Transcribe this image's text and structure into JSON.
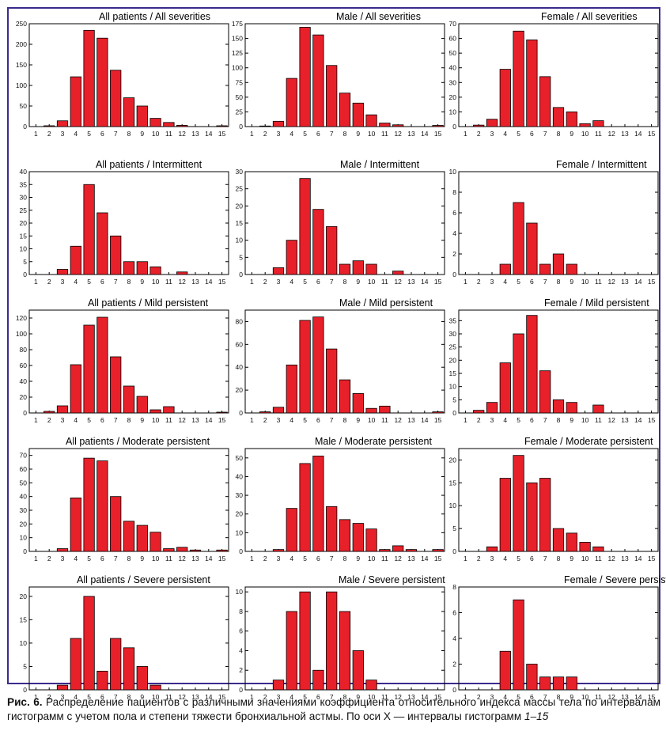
{
  "caption": {
    "fig_label": "Рис. 6.",
    "text": " Распределение пациентов с различными значениями коэффициента относительного индекса массы тела по интервалам гистограмм с учетом пола и степени тяжести бронхиальной астмы. По оси X — интервалы гистограмм ",
    "range": "1–15"
  },
  "colors": {
    "bar": "#e8202a",
    "bar_stroke": "#000000",
    "frame": "#3b2a8c"
  },
  "chart_data": [
    {
      "type": "bar",
      "title": "All patients / All severities",
      "categories": [
        "1",
        "2",
        "3",
        "4",
        "5",
        "6",
        "7",
        "8",
        "9",
        "10",
        "11",
        "12",
        "13",
        "14",
        "15"
      ],
      "values": [
        0,
        2,
        14,
        121,
        234,
        215,
        137,
        70,
        50,
        20,
        10,
        3,
        0,
        0,
        2
      ],
      "ylim": [
        0,
        250
      ],
      "yticks": [
        0,
        50,
        100,
        150,
        200,
        250
      ]
    },
    {
      "type": "bar",
      "title": "Male / All severities",
      "categories": [
        "1",
        "2",
        "3",
        "4",
        "5",
        "6",
        "7",
        "8",
        "9",
        "10",
        "11",
        "12",
        "13",
        "14",
        "15"
      ],
      "values": [
        0,
        1,
        9,
        82,
        169,
        156,
        104,
        57,
        40,
        20,
        6,
        3,
        0,
        0,
        2
      ],
      "ylim": [
        0,
        175
      ],
      "yticks": [
        0,
        25,
        50,
        75,
        100,
        125,
        150,
        175
      ]
    },
    {
      "type": "bar",
      "title": "Female / All severities",
      "categories": [
        "1",
        "2",
        "3",
        "4",
        "5",
        "6",
        "7",
        "8",
        "9",
        "10",
        "11",
        "12",
        "13",
        "14",
        "15"
      ],
      "values": [
        0,
        1,
        5,
        39,
        65,
        59,
        34,
        13,
        10,
        2,
        4,
        0,
        0,
        0,
        0
      ],
      "ylim": [
        0,
        70
      ],
      "yticks": [
        0,
        10,
        20,
        30,
        40,
        50,
        60,
        70
      ]
    },
    {
      "type": "bar",
      "title": "All patients / Intermittent",
      "categories": [
        "1",
        "2",
        "3",
        "4",
        "5",
        "6",
        "7",
        "8",
        "9",
        "10",
        "11",
        "12",
        "13",
        "14",
        "15"
      ],
      "values": [
        0,
        0,
        2,
        11,
        35,
        24,
        15,
        5,
        5,
        3,
        0,
        1,
        0,
        0,
        0
      ],
      "ylim": [
        0,
        40
      ],
      "yticks": [
        0,
        5,
        10,
        15,
        20,
        25,
        30,
        35,
        40
      ]
    },
    {
      "type": "bar",
      "title": "Male / Intermittent",
      "categories": [
        "1",
        "2",
        "3",
        "4",
        "5",
        "6",
        "7",
        "8",
        "9",
        "10",
        "11",
        "12",
        "13",
        "14",
        "15"
      ],
      "values": [
        0,
        0,
        2,
        10,
        28,
        19,
        14,
        3,
        4,
        3,
        0,
        1,
        0,
        0,
        0
      ],
      "ylim": [
        0,
        30
      ],
      "yticks": [
        0,
        5,
        10,
        15,
        20,
        25,
        30
      ]
    },
    {
      "type": "bar",
      "title": "Female / Intermittent",
      "categories": [
        "1",
        "2",
        "3",
        "4",
        "5",
        "6",
        "7",
        "8",
        "9",
        "10",
        "11",
        "12",
        "13",
        "14",
        "15"
      ],
      "values": [
        0,
        0,
        0,
        1,
        7,
        5,
        1,
        2,
        1,
        0,
        0,
        0,
        0,
        0,
        0
      ],
      "ylim": [
        0,
        10
      ],
      "yticks": [
        0,
        2,
        4,
        6,
        8,
        10
      ]
    },
    {
      "type": "bar",
      "title": "All patients / Mild persistent",
      "categories": [
        "1",
        "2",
        "3",
        "4",
        "5",
        "6",
        "7",
        "8",
        "9",
        "10",
        "11",
        "12",
        "13",
        "14",
        "15"
      ],
      "values": [
        0,
        2,
        9,
        61,
        111,
        121,
        71,
        34,
        21,
        4,
        8,
        0,
        0,
        0,
        1
      ],
      "ylim": [
        0,
        130
      ],
      "yticks": [
        0,
        20,
        40,
        60,
        80,
        100,
        120
      ]
    },
    {
      "type": "bar",
      "title": "Male / Mild persistent",
      "categories": [
        "1",
        "2",
        "3",
        "4",
        "5",
        "6",
        "7",
        "8",
        "9",
        "10",
        "11",
        "12",
        "13",
        "14",
        "15"
      ],
      "values": [
        0,
        1,
        5,
        42,
        81,
        84,
        56,
        29,
        17,
        4,
        6,
        0,
        0,
        0,
        1
      ],
      "ylim": [
        0,
        90
      ],
      "yticks": [
        0,
        20,
        40,
        60,
        80
      ]
    },
    {
      "type": "bar",
      "title": "Female / Mild persistent",
      "categories": [
        "1",
        "2",
        "3",
        "4",
        "5",
        "6",
        "7",
        "8",
        "9",
        "10",
        "11",
        "12",
        "13",
        "14",
        "15"
      ],
      "values": [
        0,
        1,
        4,
        19,
        30,
        37,
        16,
        5,
        4,
        0,
        3,
        0,
        0,
        0,
        0
      ],
      "ylim": [
        0,
        39
      ],
      "yticks": [
        0,
        5,
        10,
        15,
        20,
        25,
        30,
        35
      ]
    },
    {
      "type": "bar",
      "title": "All patients / Moderate persistent",
      "categories": [
        "1",
        "2",
        "3",
        "4",
        "5",
        "6",
        "7",
        "8",
        "9",
        "10",
        "11",
        "12",
        "13",
        "14",
        "15"
      ],
      "values": [
        0,
        0,
        2,
        39,
        68,
        66,
        40,
        22,
        19,
        14,
        2,
        3,
        1,
        0,
        1
      ],
      "ylim": [
        0,
        75
      ],
      "yticks": [
        0,
        10,
        20,
        30,
        40,
        50,
        60,
        70
      ]
    },
    {
      "type": "bar",
      "title": "Male / Moderate persistent",
      "categories": [
        "1",
        "2",
        "3",
        "4",
        "5",
        "6",
        "7",
        "8",
        "9",
        "10",
        "11",
        "12",
        "13",
        "14",
        "15"
      ],
      "values": [
        0,
        0,
        1,
        23,
        47,
        51,
        24,
        17,
        15,
        12,
        1,
        3,
        1,
        0,
        1
      ],
      "ylim": [
        0,
        55
      ],
      "yticks": [
        0,
        10,
        20,
        30,
        40,
        50
      ]
    },
    {
      "type": "bar",
      "title": "Female / Moderate persistent",
      "categories": [
        "1",
        "2",
        "3",
        "4",
        "5",
        "6",
        "7",
        "8",
        "9",
        "10",
        "11",
        "12",
        "13",
        "14",
        "15"
      ],
      "values": [
        0,
        0,
        1,
        16,
        21,
        15,
        16,
        5,
        4,
        2,
        1,
        0,
        0,
        0,
        0
      ],
      "ylim": [
        0,
        22.5
      ],
      "yticks": [
        0,
        5,
        10,
        15,
        20
      ]
    },
    {
      "type": "bar",
      "title": "All patients / Severe persistent",
      "categories": [
        "1",
        "2",
        "3",
        "4",
        "5",
        "6",
        "7",
        "8",
        "9",
        "10",
        "11",
        "12",
        "13",
        "14",
        "15"
      ],
      "values": [
        0,
        0,
        1,
        11,
        20,
        4,
        11,
        9,
        5,
        1,
        0,
        0,
        0,
        0,
        0
      ],
      "ylim": [
        0,
        22
      ],
      "yticks": [
        0,
        5,
        10,
        15,
        20
      ]
    },
    {
      "type": "bar",
      "title": "Male / Severe persistent",
      "categories": [
        "1",
        "2",
        "3",
        "4",
        "5",
        "6",
        "7",
        "8",
        "9",
        "10",
        "11",
        "12",
        "13",
        "14",
        "15"
      ],
      "values": [
        0,
        0,
        1,
        8,
        10,
        2,
        10,
        8,
        4,
        1,
        0,
        0,
        0,
        0,
        0
      ],
      "ylim": [
        0,
        10.5
      ],
      "yticks": [
        0,
        2,
        4,
        6,
        8,
        10
      ]
    },
    {
      "type": "bar",
      "title": "Female / Severe persistent",
      "categories": [
        "1",
        "2",
        "3",
        "4",
        "5",
        "6",
        "7",
        "8",
        "9",
        "10",
        "11",
        "12",
        "13",
        "14",
        "15"
      ],
      "values": [
        0,
        0,
        0,
        3,
        7,
        2,
        1,
        1,
        1,
        0,
        0,
        0,
        0,
        0,
        0
      ],
      "ylim": [
        0,
        8
      ],
      "yticks": [
        0,
        2,
        4,
        6,
        8
      ]
    }
  ]
}
